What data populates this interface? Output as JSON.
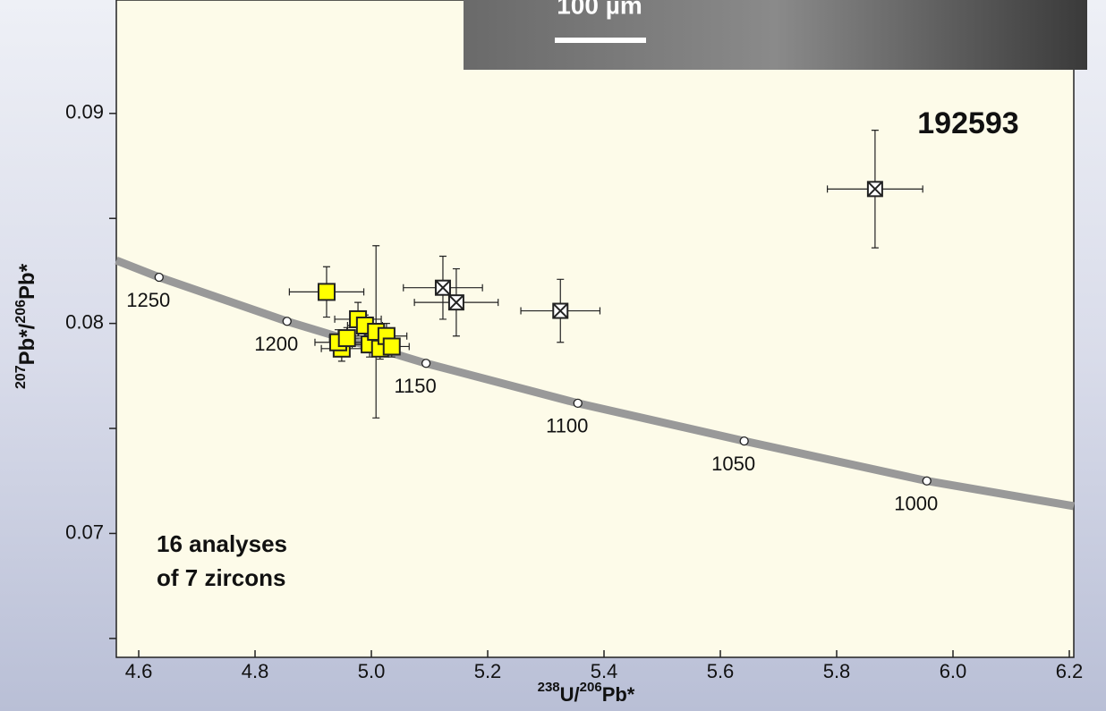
{
  "chart_data": {
    "type": "scatter",
    "xlabel": {
      "parts": [
        "238",
        "U/",
        "206",
        "Pb*"
      ]
    },
    "ylabel": {
      "parts": [
        "207",
        "Pb*/",
        "206",
        "Pb*"
      ]
    },
    "sample": "192593",
    "note": [
      "16 analyses",
      "of 7 zircons"
    ],
    "scale_bar": "100 µm",
    "xlim": [
      4.5615,
      6.2077
    ],
    "ylim": [
      0.0641,
      0.0954
    ],
    "xticks": [
      4.6,
      4.8,
      {
        "value": 5.0,
        "label": "5.0"
      },
      5.2,
      5.4,
      5.6,
      5.8,
      {
        "value": 6.0,
        "label": "6.0"
      },
      6.2
    ],
    "yticks": [
      0.07,
      0.08,
      0.09
    ],
    "yminorticks": [
      0.065,
      0.075,
      0.085
    ],
    "series": [
      {
        "marker": "square",
        "color": "#ffff00",
        "x": [
          4.923,
          4.977,
          4.949,
          4.943,
          4.958,
          4.989,
          4.997,
          5.008,
          5.015,
          5.026,
          5.035
        ],
        "y": [
          0.0815,
          0.0802,
          0.0788,
          0.0791,
          0.0793,
          0.0799,
          0.079,
          0.0796,
          0.0788,
          0.0794,
          0.0789
        ],
        "xerr": [
          0.064,
          0.04,
          0.035,
          0.04,
          0.03,
          0.03,
          0.03,
          0.03,
          0.03,
          0.035,
          0.03
        ],
        "yerr": [
          0.0012,
          0.0008,
          0.0006,
          0.0006,
          0.0005,
          0.0005,
          0.0006,
          0.0041,
          0.0005,
          0.0006,
          0.0005
        ]
      },
      {
        "marker": "crossed-square",
        "color": "#ffffff",
        "x": [
          5.123,
          5.146,
          5.325,
          5.866
        ],
        "y": [
          0.0817,
          0.081,
          0.0806,
          0.0864
        ],
        "xerr": [
          0.068,
          0.072,
          0.068,
          0.082
        ],
        "yerr": [
          0.0015,
          0.0016,
          0.0015,
          0.0028
        ]
      }
    ],
    "concordia": {
      "color": "#999999",
      "x": [
        4.5615,
        4.635,
        4.855,
        5.094,
        5.355,
        5.641,
        5.955,
        6.2077
      ],
      "y": [
        0.083,
        0.0822,
        0.0801,
        0.0781,
        0.0762,
        0.0744,
        0.0725,
        0.0713
      ]
    },
    "age_marks": {
      "ages": [
        1250,
        1200,
        1150,
        1100,
        1050,
        1000
      ],
      "x": [
        4.635,
        4.855,
        5.094,
        5.355,
        5.641,
        5.955
      ],
      "y": [
        0.0822,
        0.0801,
        0.0781,
        0.0762,
        0.0744,
        0.0725
      ]
    }
  }
}
